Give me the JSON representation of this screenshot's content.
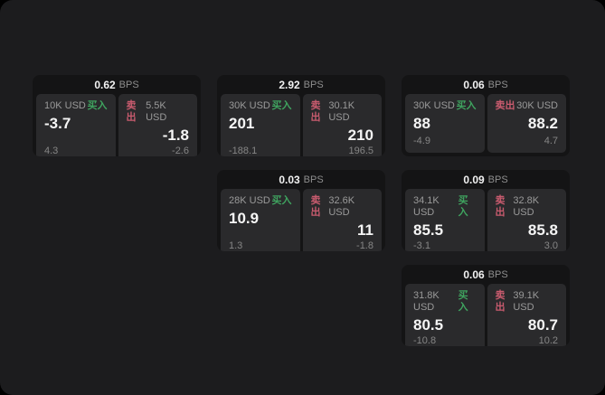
{
  "labels": {
    "bps_unit": "BPS",
    "buy": "买入",
    "sell": "卖出"
  },
  "colors": {
    "page_bg": "#1c1c1e",
    "card_bg": "#141415",
    "panel_bg": "#2a2a2c",
    "buy_green": "#3fa35f",
    "sell_red": "#c85b6e",
    "value_white": "#f5f5f5",
    "muted_gray": "#8e8e8e"
  },
  "cards": [
    {
      "bps": "0.62",
      "buy": {
        "size": "10K USD",
        "price": "-3.7",
        "sub": "4.3"
      },
      "sell": {
        "size": "5.5K USD",
        "price": "-1.8",
        "sub": "-2.6"
      }
    },
    {
      "bps": "2.92",
      "buy": {
        "size": "30K USD",
        "price": "201",
        "sub": "-188.1"
      },
      "sell": {
        "size": "30.1K USD",
        "price": "210",
        "sub": "196.5"
      }
    },
    {
      "bps": "0.06",
      "buy": {
        "size": "30K USD",
        "price": "88",
        "sub": "-4.9"
      },
      "sell": {
        "size": "30K USD",
        "price": "88.2",
        "sub": "4.7"
      }
    },
    {
      "bps": "0.03",
      "buy": {
        "size": "28K USD",
        "price": "10.9",
        "sub": "1.3"
      },
      "sell": {
        "size": "32.6K USD",
        "price": "11",
        "sub": "-1.8"
      }
    },
    {
      "bps": "0.09",
      "buy": {
        "size": "34.1K USD",
        "price": "85.5",
        "sub": "-3.1"
      },
      "sell": {
        "size": "32.8K USD",
        "price": "85.8",
        "sub": "3.0"
      }
    },
    {
      "bps": "0.06",
      "buy": {
        "size": "31.8K USD",
        "price": "80.5",
        "sub": "-10.8"
      },
      "sell": {
        "size": "39.1K USD",
        "price": "80.7",
        "sub": "10.2"
      }
    }
  ]
}
